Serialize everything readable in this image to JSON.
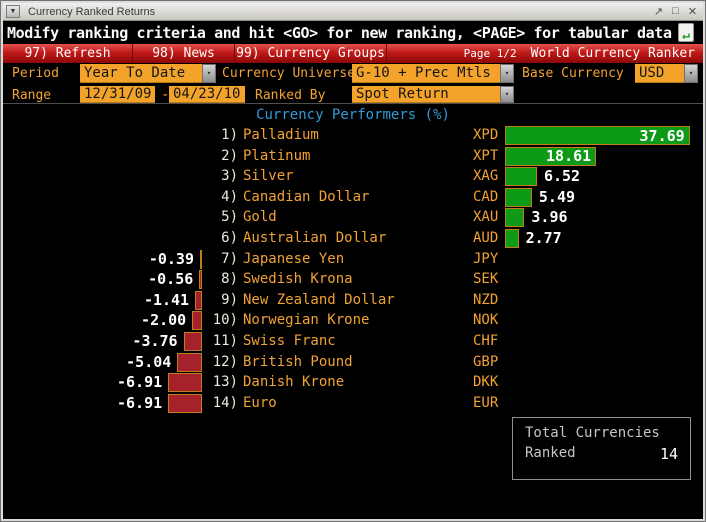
{
  "window": {
    "title": "Currency Ranked Returns",
    "controls": {
      "menu": "▼",
      "popout": "↗",
      "maximize": "□",
      "close": "✕"
    }
  },
  "message_bar": {
    "text": "Modify ranking criteria and hit <GO> for new ranking, <PAGE> for tabular data",
    "icon": "page-with-green-return-arrow",
    "icon_glyph": "↵"
  },
  "menu_bar": {
    "items": [
      "97) Refresh",
      "98) News",
      "99) Currency Groups"
    ],
    "page_indicator": "Page 1/2",
    "app_title": "World Currency Ranker"
  },
  "form": {
    "period": {
      "label": "Period",
      "value": "Year To Date"
    },
    "currency_universe": {
      "label": "Currency Universe",
      "value": "G-10 + Prec Mtls"
    },
    "base_currency": {
      "label": "Base Currency",
      "value": "USD"
    },
    "range": {
      "label": "Range",
      "from": "12/31/09",
      "separator": "-",
      "to": "04/23/10"
    },
    "ranked_by": {
      "label": "Ranked By",
      "value": "Spot Return"
    },
    "dropdown_arrow": "▾"
  },
  "chart_data": {
    "type": "bar",
    "orientation": "horizontal",
    "title": "Currency Performers  (%)",
    "unit": "%",
    "value_max": 37.69,
    "value_min": -6.91,
    "positive_color": "#0d9a17",
    "negative_color": "#a5212b",
    "bar_border_color": "#c07d1e",
    "rows": [
      {
        "rank": "1)",
        "name": "Palladium",
        "ticker": "XPD",
        "value": 37.69,
        "label": "37.69"
      },
      {
        "rank": "2)",
        "name": "Platinum",
        "ticker": "XPT",
        "value": 18.61,
        "label": "18.61"
      },
      {
        "rank": "3)",
        "name": "Silver",
        "ticker": "XAG",
        "value": 6.52,
        "label": "6.52"
      },
      {
        "rank": "4)",
        "name": "Canadian Dollar",
        "ticker": "CAD",
        "value": 5.49,
        "label": "5.49"
      },
      {
        "rank": "5)",
        "name": "Gold",
        "ticker": "XAU",
        "value": 3.96,
        "label": "3.96"
      },
      {
        "rank": "6)",
        "name": "Australian Dollar",
        "ticker": "AUD",
        "value": 2.77,
        "label": "2.77"
      },
      {
        "rank": "7)",
        "name": "Japanese Yen",
        "ticker": "JPY",
        "value": -0.39,
        "label": "-0.39"
      },
      {
        "rank": "8)",
        "name": "Swedish Krona",
        "ticker": "SEK",
        "value": -0.56,
        "label": "-0.56"
      },
      {
        "rank": "9)",
        "name": "New Zealand Dollar",
        "ticker": "NZD",
        "value": -1.41,
        "label": "-1.41"
      },
      {
        "rank": "10)",
        "name": "Norwegian Krone",
        "ticker": "NOK",
        "value": -2.0,
        "label": "-2.00"
      },
      {
        "rank": "11)",
        "name": "Swiss Franc",
        "ticker": "CHF",
        "value": -3.76,
        "label": "-3.76"
      },
      {
        "rank": "12)",
        "name": "British Pound",
        "ticker": "GBP",
        "value": -5.04,
        "label": "-5.04"
      },
      {
        "rank": "13)",
        "name": "Danish Krone",
        "ticker": "DKK",
        "value": -6.91,
        "label": "-6.91"
      },
      {
        "rank": "14)",
        "name": "Euro",
        "ticker": "EUR",
        "value": -6.91,
        "label": "-6.91"
      }
    ]
  },
  "summary": {
    "line1": "Total Currencies",
    "line2": "Ranked",
    "value": "14"
  },
  "colors": {
    "amber_field": "#f3a32a",
    "amber_text": "#f1a233",
    "chart_title_blue": "#2f9cd8",
    "menu_red": "#c01a18",
    "positive_green": "#0d9a17",
    "negative_red": "#a5212b"
  }
}
